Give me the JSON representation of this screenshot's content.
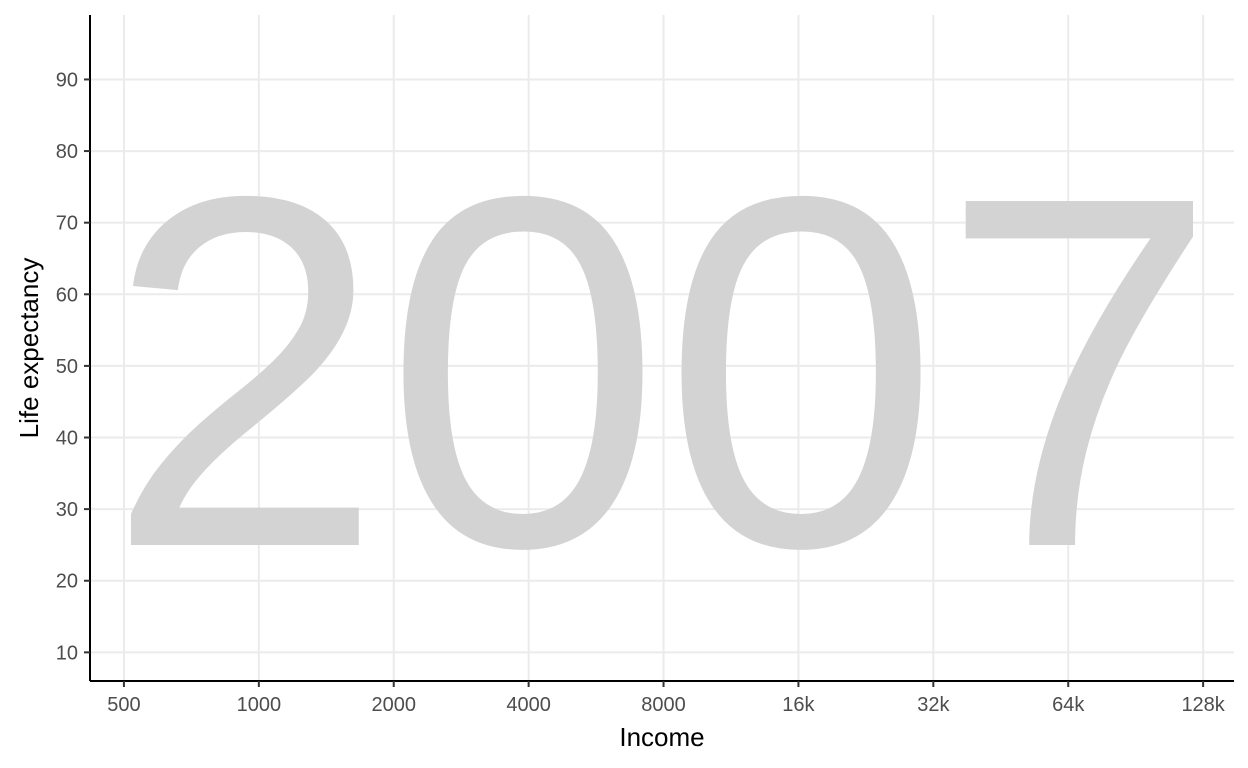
{
  "chart_data": {
    "type": "scatter",
    "title": "",
    "xlabel": "Income",
    "ylabel": "Life expectancy",
    "x_scale": "log2",
    "xlim": [
      420,
      150000
    ],
    "ylim": [
      6,
      99
    ],
    "x_ticks": [
      {
        "value": 500,
        "label": "500"
      },
      {
        "value": 1000,
        "label": "1000"
      },
      {
        "value": 2000,
        "label": "2000"
      },
      {
        "value": 4000,
        "label": "4000"
      },
      {
        "value": 8000,
        "label": "8000"
      },
      {
        "value": 16000,
        "label": "16k"
      },
      {
        "value": 32000,
        "label": "32k"
      },
      {
        "value": 64000,
        "label": "64k"
      },
      {
        "value": 128000,
        "label": "128k"
      }
    ],
    "y_ticks": [
      {
        "value": 10,
        "label": "10"
      },
      {
        "value": 20,
        "label": "20"
      },
      {
        "value": 30,
        "label": "30"
      },
      {
        "value": 40,
        "label": "40"
      },
      {
        "value": 50,
        "label": "50"
      },
      {
        "value": 60,
        "label": "60"
      },
      {
        "value": 70,
        "label": "70"
      },
      {
        "value": 80,
        "label": "80"
      },
      {
        "value": 90,
        "label": "90"
      }
    ],
    "grid": true,
    "background_annotation": "2007",
    "series": [],
    "colors": {
      "annotation": "#d3d3d3",
      "grid": "#ebebeb",
      "axis": "#000000",
      "tick_label": "#4d4d4d"
    }
  }
}
